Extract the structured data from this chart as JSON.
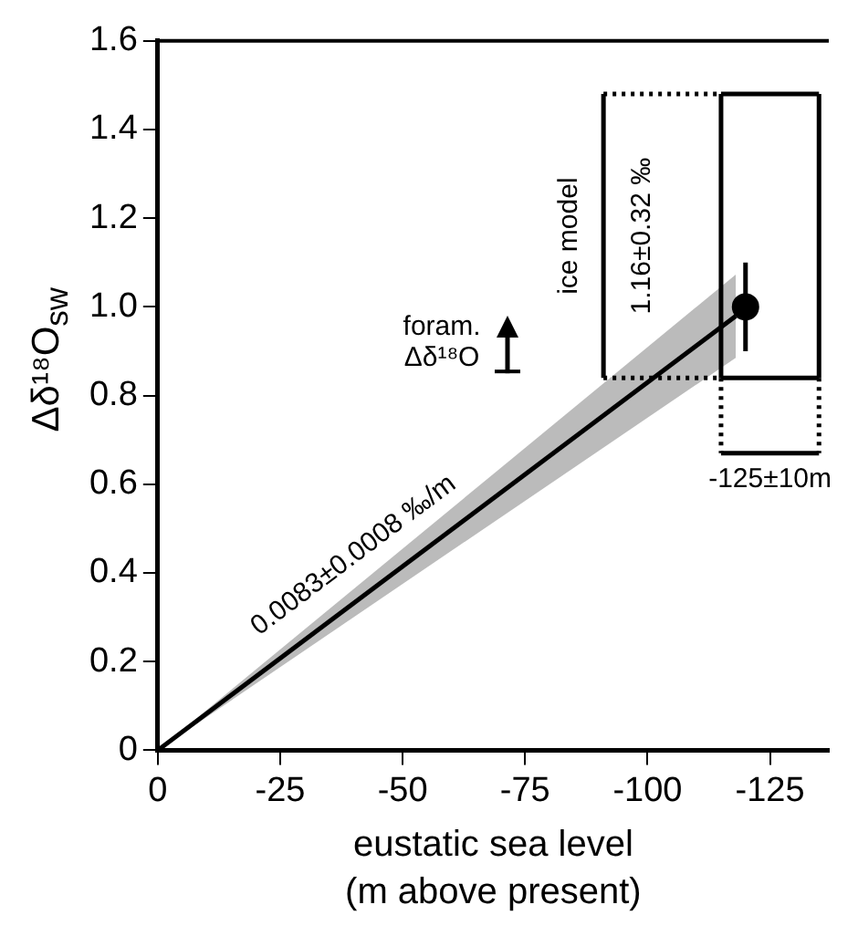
{
  "chart_data": {
    "type": "line",
    "xlabel": "eustatic sea level\n(m above present)",
    "ylabel": "Δδ¹⁸O$_{sw}$",
    "xlim": [
      0,
      -137
    ],
    "xticks": [
      0,
      -25,
      -50,
      -75,
      -100,
      -125
    ],
    "ylim": [
      0,
      1.6
    ],
    "yticks": [
      0,
      {
        "value": 0.2,
        "label": "0.2"
      },
      {
        "value": 0.4,
        "label": "0.4"
      },
      {
        "value": 0.6,
        "label": "0.6"
      },
      {
        "value": 0.8,
        "label": "0.8"
      },
      {
        "value": 1,
        "label": "1.0"
      },
      {
        "value": 1.2,
        "label": "1.2"
      },
      {
        "value": 1.4,
        "label": "1.4"
      },
      {
        "value": 1.6,
        "label": "1.6"
      }
    ],
    "grid": false,
    "legend": false,
    "series": [
      {
        "color": "#000000",
        "x": [
          0,
          -118
        ],
        "values": [
          0,
          0.979
        ],
        "lower": [
          0,
          0.885
        ],
        "upper": [
          0,
          1.073
        ],
        "marker": "none"
      },
      {
        "type": "scatter",
        "color": "#000000",
        "x": [
          -120
        ],
        "values": [
          1.0
        ],
        "errors": [
          0.1
        ],
        "marker": "circle"
      },
      {
        "color": "#000000",
        "x": [
          -115,
          -135
        ],
        "values": [
          1.48,
          1.48
        ],
        "marker": "none"
      },
      {
        "color": "#000000",
        "x": [
          -115,
          -135
        ],
        "values": [
          0.84,
          0.84
        ],
        "marker": "none"
      },
      {
        "color": "#000000",
        "x": [
          -115,
          -115
        ],
        "values": [
          0.84,
          1.48
        ],
        "marker": "none"
      },
      {
        "color": "#000000",
        "x": [
          -135,
          -135
        ],
        "values": [
          0.84,
          1.48
        ],
        "marker": "none"
      },
      {
        "color": "#000000",
        "x": [
          -91,
          -91
        ],
        "values": [
          0.84,
          1.48
        ],
        "marker": "none"
      },
      {
        "color": "#000000",
        "x": [
          -91,
          -115
        ],
        "values": [
          1.48,
          1.48
        ],
        "marker": "none",
        "line_style": "dotted"
      },
      {
        "color": "#000000",
        "x": [
          -91,
          -115
        ],
        "values": [
          0.84,
          0.84
        ],
        "marker": "none",
        "line_style": "dotted"
      },
      {
        "color": "#000000",
        "x": [
          -115,
          -115
        ],
        "values": [
          0.84,
          0.67
        ],
        "marker": "none",
        "line_style": "dotted"
      },
      {
        "color": "#000000",
        "x": [
          -135,
          -135
        ],
        "values": [
          0.84,
          0.67
        ],
        "marker": "none",
        "line_style": "dotted"
      },
      {
        "color": "#000000",
        "x": [
          -115,
          -135
        ],
        "values": [
          0.67,
          0.67
        ],
        "marker": "none"
      }
    ],
    "annotations": [
      "ice model",
      "1.16±0.32 ‰",
      "foram.\nΔδ¹⁸O",
      "0.0083±0.0008 ‰/m",
      "-125±10m"
    ]
  }
}
